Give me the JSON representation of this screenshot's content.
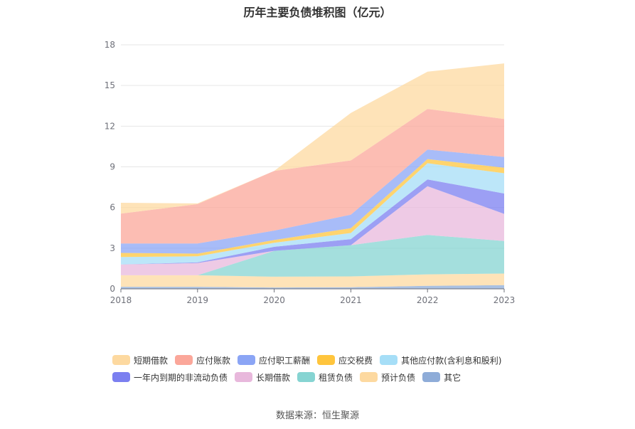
{
  "source_text": "数据来源：恒生聚源",
  "chart_data": {
    "type": "area",
    "stacked": true,
    "title": "历年主要负债堆积图（亿元）",
    "xlabel": "",
    "ylabel": "",
    "x": [
      "2018",
      "2019",
      "2020",
      "2021",
      "2022",
      "2023"
    ],
    "ylim": [
      0,
      18
    ],
    "yticks": [
      0,
      3,
      6,
      9,
      12,
      15,
      18
    ],
    "grid": true,
    "legend_position": "bottom",
    "series": [
      {
        "name": "其它",
        "color": "#8eacd8",
        "values": [
          0.15,
          0.15,
          0.1,
          0.12,
          0.22,
          0.28
        ]
      },
      {
        "name": "预计负债",
        "color": "#fdd9a0",
        "values": [
          0.85,
          0.85,
          0.8,
          0.8,
          0.85,
          0.85
        ]
      },
      {
        "name": "租赁负债",
        "color": "#86d4d2",
        "values": [
          0.0,
          0.0,
          1.9,
          2.3,
          2.9,
          2.4
        ]
      },
      {
        "name": "长期借款",
        "color": "#e8b8dc",
        "values": [
          0.8,
          0.9,
          0.0,
          0.0,
          3.6,
          2.0
        ]
      },
      {
        "name": "一年内到期的非流动负债",
        "color": "#7b7ff0",
        "values": [
          0.0,
          0.05,
          0.3,
          0.45,
          0.5,
          1.5
        ]
      },
      {
        "name": "其他应付款(含利息和股利)",
        "color": "#a6def7",
        "values": [
          0.55,
          0.45,
          0.3,
          0.45,
          1.2,
          1.5
        ]
      },
      {
        "name": "应交税费",
        "color": "#ffc53d",
        "values": [
          0.3,
          0.2,
          0.2,
          0.35,
          0.3,
          0.4
        ]
      },
      {
        "name": "应付职工薪酬",
        "color": "#8ba5f5",
        "values": [
          0.7,
          0.75,
          0.7,
          1.0,
          0.7,
          0.8
        ]
      },
      {
        "name": "应付账款",
        "color": "#fba79a",
        "values": [
          2.2,
          2.9,
          4.4,
          4.0,
          3.0,
          2.8
        ]
      },
      {
        "name": "短期借款",
        "color": "#fdd9a0",
        "values": [
          0.8,
          0.05,
          0.0,
          3.5,
          2.75,
          4.1
        ]
      }
    ],
    "legend_order": [
      "短期借款",
      "应付账款",
      "应付职工薪酬",
      "应交税费",
      "其他应付款(含利息和股利)",
      "一年内到期的非流动负债",
      "长期借款",
      "租赁负债",
      "预计负债",
      "其它"
    ]
  }
}
